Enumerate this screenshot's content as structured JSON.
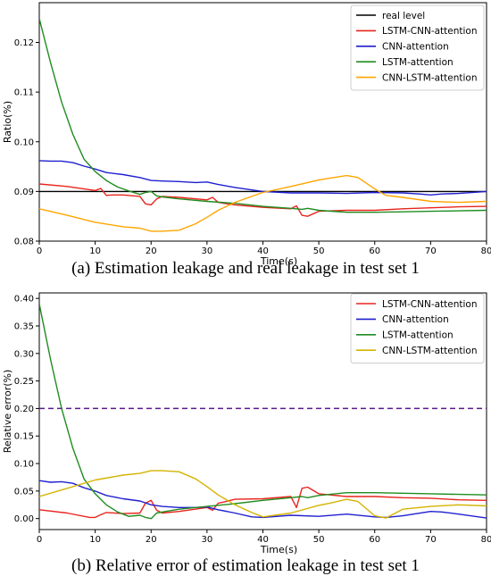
{
  "chart_data": [
    {
      "type": "line",
      "caption": "(a) Estimation leakage and real leakage in test set 1",
      "xlabel": "Time(s)",
      "ylabel": "Ratio(%)",
      "xlim": [
        0,
        80
      ],
      "ylim": [
        0.08,
        0.128
      ],
      "xticks": [
        "0",
        "10",
        "20",
        "30",
        "40",
        "50",
        "60",
        "70",
        "80"
      ],
      "yticks": [
        "0.08",
        "0.09",
        "0.10",
        "0.11",
        "0.12"
      ],
      "legend_position": "top-right",
      "series": [
        {
          "name": "real level",
          "color": "#000000",
          "x": [
            0,
            80
          ],
          "y": [
            0.09,
            0.09
          ]
        },
        {
          "name": "LSTM-CNN-attention",
          "color": "#e8251f",
          "x": [
            0,
            5,
            10,
            11,
            12,
            13,
            15,
            18,
            19,
            20,
            21,
            22,
            25,
            30,
            31,
            32,
            33,
            35,
            40,
            45,
            46,
            47,
            48,
            50,
            55,
            60,
            65,
            70,
            75,
            80
          ],
          "y": [
            0.0915,
            0.091,
            0.0902,
            0.0906,
            0.0892,
            0.0893,
            0.0893,
            0.089,
            0.0875,
            0.0873,
            0.0885,
            0.089,
            0.0888,
            0.0883,
            0.0888,
            0.0878,
            0.0876,
            0.0873,
            0.0868,
            0.0865,
            0.0871,
            0.0852,
            0.085,
            0.086,
            0.0862,
            0.0862,
            0.0865,
            0.0867,
            0.0869,
            0.087
          ]
        },
        {
          "name": "CNN-attention",
          "color": "#1f1fcf",
          "x": [
            0,
            2,
            4,
            6,
            8,
            10,
            12,
            15,
            18,
            20,
            22,
            25,
            28,
            30,
            32,
            35,
            40,
            45,
            50,
            55,
            60,
            65,
            68,
            70,
            72,
            75,
            80
          ],
          "y": [
            0.0962,
            0.0961,
            0.0961,
            0.0958,
            0.0951,
            0.0945,
            0.0938,
            0.0934,
            0.0928,
            0.0922,
            0.0921,
            0.092,
            0.0918,
            0.0919,
            0.0914,
            0.0908,
            0.09,
            0.0897,
            0.0897,
            0.0896,
            0.0898,
            0.0897,
            0.0895,
            0.0893,
            0.0895,
            0.0896,
            0.09
          ]
        },
        {
          "name": "LSTM-attention",
          "color": "#208c20",
          "x": [
            0,
            2,
            4,
            6,
            8,
            10,
            12,
            14,
            16,
            18,
            19,
            20,
            21,
            22,
            25,
            30,
            35,
            40,
            45,
            47,
            48,
            50,
            55,
            60,
            65,
            70,
            75,
            80
          ],
          "y": [
            0.1248,
            0.116,
            0.108,
            0.1015,
            0.0965,
            0.094,
            0.0922,
            0.0909,
            0.0901,
            0.0894,
            0.0898,
            0.09,
            0.0891,
            0.0889,
            0.0885,
            0.088,
            0.0876,
            0.087,
            0.0866,
            0.0864,
            0.0866,
            0.0862,
            0.0858,
            0.0858,
            0.0859,
            0.086,
            0.0861,
            0.0862
          ]
        },
        {
          "name": "CNN-LSTM-attention",
          "color": "#ffa500",
          "x": [
            0,
            5,
            10,
            15,
            18,
            20,
            22,
            25,
            28,
            30,
            32,
            35,
            38,
            40,
            45,
            50,
            52,
            55,
            57,
            60,
            62,
            65,
            70,
            75,
            80
          ],
          "y": [
            0.0865,
            0.0852,
            0.0838,
            0.0829,
            0.0826,
            0.082,
            0.082,
            0.0822,
            0.0835,
            0.0848,
            0.0862,
            0.0878,
            0.089,
            0.0898,
            0.091,
            0.0923,
            0.0927,
            0.0932,
            0.0928,
            0.0905,
            0.0892,
            0.0888,
            0.088,
            0.0878,
            0.088
          ]
        }
      ]
    },
    {
      "type": "line",
      "caption": "(b) Relative error of estimation leakage in test set 1",
      "xlabel": "Time(s)",
      "ylabel": "Relative error(%)",
      "xlim": [
        0,
        80
      ],
      "ylim": [
        -0.02,
        0.41
      ],
      "xticks": [
        "0",
        "10",
        "20",
        "30",
        "40",
        "50",
        "60",
        "70",
        "80"
      ],
      "yticks": [
        "0.00",
        "0.05",
        "0.10",
        "0.15",
        "0.20",
        "0.25",
        "0.30",
        "0.35",
        "0.40"
      ],
      "threshold": {
        "y": 0.2,
        "color": "#5a1a8c",
        "style": "dashed"
      },
      "legend_position": "top-right",
      "series": [
        {
          "name": "LSTM-CNN-attention",
          "color": "#e8251f",
          "x": [
            0,
            5,
            9,
            10,
            11,
            12,
            15,
            18,
            19,
            20,
            21,
            22,
            25,
            30,
            31,
            32,
            33,
            35,
            40,
            45,
            46,
            47,
            48,
            50,
            55,
            60,
            65,
            70,
            75,
            80
          ],
          "y": [
            0.016,
            0.01,
            0.002,
            0.002,
            0.007,
            0.011,
            0.009,
            0.01,
            0.028,
            0.033,
            0.015,
            0.01,
            0.013,
            0.02,
            0.015,
            0.028,
            0.03,
            0.035,
            0.036,
            0.04,
            0.02,
            0.055,
            0.057,
            0.045,
            0.04,
            0.04,
            0.038,
            0.037,
            0.034,
            0.033
          ]
        },
        {
          "name": "CNN-attention",
          "color": "#1f1fcf",
          "x": [
            0,
            2,
            4,
            6,
            8,
            10,
            12,
            15,
            18,
            20,
            22,
            25,
            28,
            30,
            32,
            35,
            38,
            40,
            45,
            50,
            55,
            60,
            62,
            65,
            70,
            72,
            75,
            80
          ],
          "y": [
            0.069,
            0.066,
            0.067,
            0.064,
            0.056,
            0.05,
            0.042,
            0.036,
            0.032,
            0.025,
            0.022,
            0.02,
            0.02,
            0.021,
            0.016,
            0.01,
            0.003,
            0.002,
            0.006,
            0.004,
            0.008,
            0.003,
            0.002,
            0.005,
            0.013,
            0.012,
            0.008,
            0.001
          ]
        },
        {
          "name": "LSTM-attention",
          "color": "#208c20",
          "x": [
            0,
            2,
            4,
            6,
            8,
            10,
            12,
            14,
            16,
            18,
            19,
            20,
            21,
            22,
            25,
            30,
            35,
            40,
            45,
            47,
            48,
            50,
            55,
            60,
            65,
            70,
            75,
            80
          ],
          "y": [
            0.39,
            0.29,
            0.2,
            0.128,
            0.072,
            0.045,
            0.025,
            0.012,
            0.004,
            0.006,
            0.002,
            0.0,
            0.01,
            0.012,
            0.017,
            0.022,
            0.027,
            0.033,
            0.038,
            0.04,
            0.038,
            0.042,
            0.047,
            0.047,
            0.046,
            0.045,
            0.044,
            0.043
          ]
        },
        {
          "name": "CNN-LSTM-attention",
          "color": "#d4b300",
          "x": [
            0,
            5,
            10,
            15,
            18,
            20,
            22,
            25,
            28,
            30,
            32,
            35,
            38,
            40,
            45,
            50,
            52,
            55,
            57,
            60,
            62,
            65,
            70,
            75,
            80
          ],
          "y": [
            0.04,
            0.055,
            0.07,
            0.079,
            0.082,
            0.087,
            0.087,
            0.085,
            0.072,
            0.058,
            0.043,
            0.025,
            0.011,
            0.003,
            0.01,
            0.024,
            0.028,
            0.035,
            0.031,
            0.005,
            0.001,
            0.017,
            0.022,
            0.025,
            0.023
          ]
        }
      ]
    }
  ]
}
